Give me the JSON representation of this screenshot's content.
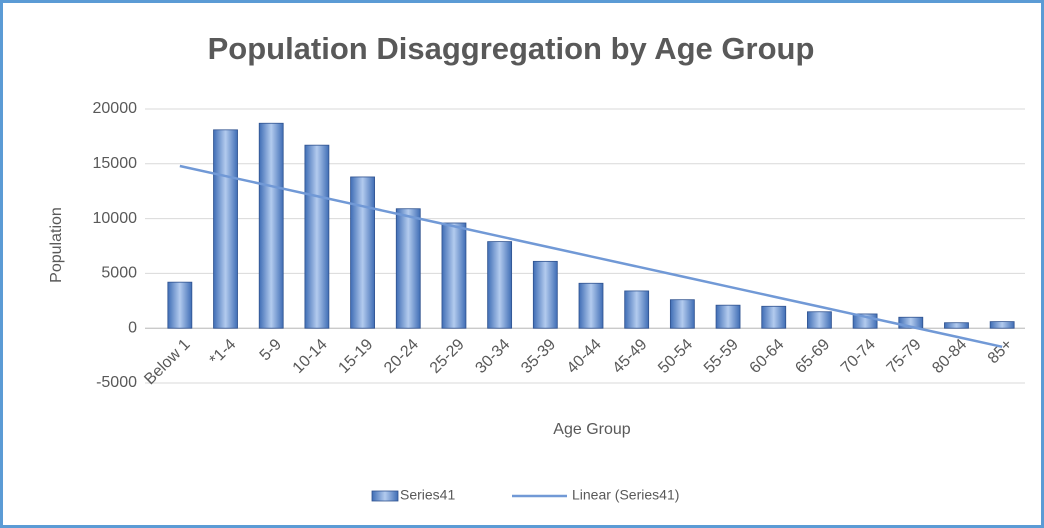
{
  "chart_data": {
    "type": "bar",
    "title": "Population Disaggregation by Age Group",
    "x_label": "Age Group",
    "y_label": "Population",
    "categories": [
      "Below 1",
      "*1-4",
      "5-9",
      "10-14",
      "15-19",
      "20-24",
      "25-29",
      "30-34",
      "35-39",
      "40-44",
      "45-49",
      "50-54",
      "55-59",
      "60-64",
      "65-69",
      "70-74",
      "75-79",
      "80-84",
      "85+"
    ],
    "series": [
      {
        "name": "Series41",
        "type": "bar",
        "color": "#4a78c2",
        "values": [
          4200,
          18100,
          18700,
          16700,
          13800,
          10900,
          9600,
          7900,
          6100,
          4100,
          3400,
          2600,
          2100,
          2000,
          1500,
          1300,
          1000,
          500,
          600
        ]
      },
      {
        "name": "Linear (Series41)",
        "type": "line",
        "color": "#7199d6",
        "values": [
          14800,
          13883,
          12967,
          12050,
          11133,
          10217,
          9300,
          8383,
          7467,
          6550,
          5633,
          4717,
          3800,
          2883,
          1967,
          1050,
          133,
          -783,
          -1700
        ]
      }
    ],
    "ylim": [
      -5000,
      20000
    ],
    "yticks": [
      -5000,
      0,
      5000,
      10000,
      15000,
      20000
    ],
    "grid": true,
    "legend": "bottom"
  }
}
